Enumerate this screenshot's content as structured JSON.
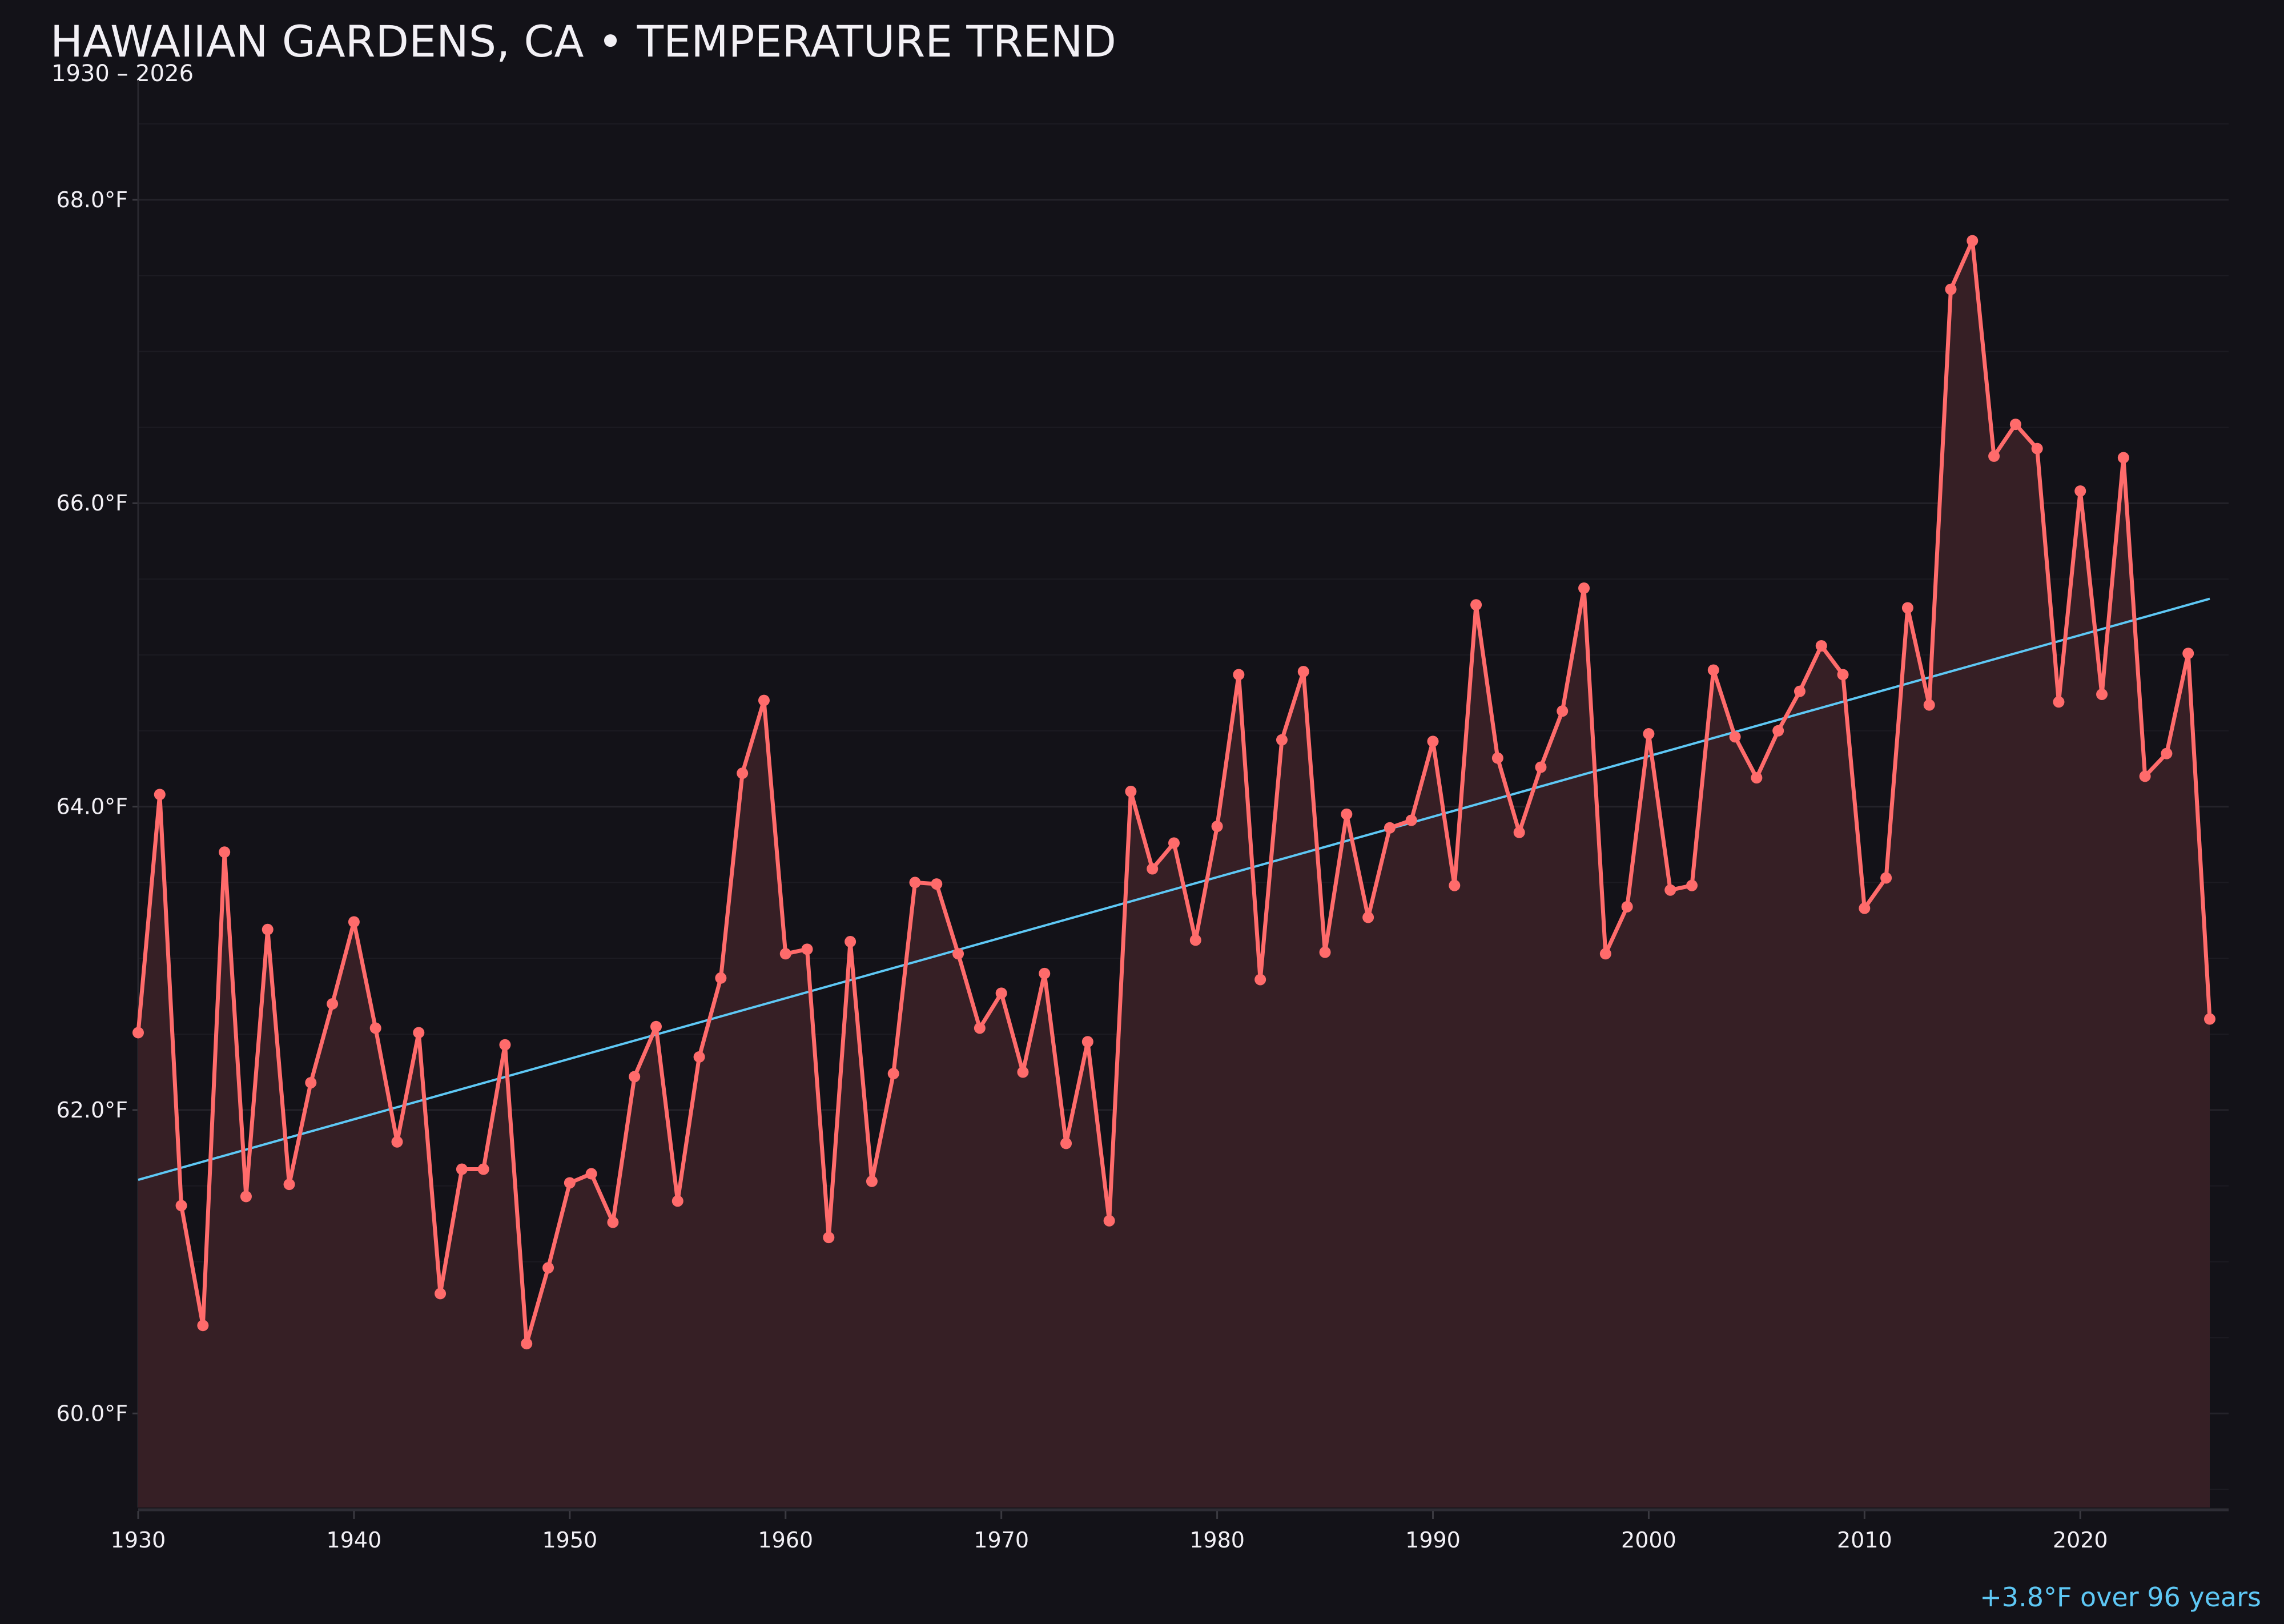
{
  "chart_data": {
    "type": "line",
    "title": "HAWAIIAN GARDENS, CA • TEMPERATURE TREND",
    "subtitle": "1930 – 2026",
    "annotation": "+3.8°F over 96 years",
    "xlabel": "",
    "ylabel": "",
    "xlim": [
      1930,
      2027
    ],
    "ylim": [
      59.38,
      68.79
    ],
    "x_ticks": [
      1930,
      1940,
      1950,
      1960,
      1970,
      1980,
      1990,
      2000,
      2010,
      2020
    ],
    "y_ticks": [
      60,
      62,
      64,
      66,
      68
    ],
    "y_tick_labels": [
      "60.0°F",
      "62.0°F",
      "64.0°F",
      "66.0°F",
      "68.0°F"
    ],
    "grid": true,
    "colors": {
      "series": "#ff6b6b",
      "fill": "#361f25",
      "trend": "#5ec8f5",
      "background": "#131218",
      "text": "#f2f0f5"
    },
    "x": [
      1930,
      1931,
      1932,
      1933,
      1934,
      1935,
      1936,
      1937,
      1938,
      1939,
      1940,
      1941,
      1942,
      1943,
      1944,
      1945,
      1946,
      1947,
      1948,
      1949,
      1950,
      1951,
      1952,
      1953,
      1954,
      1955,
      1956,
      1957,
      1958,
      1959,
      1960,
      1961,
      1962,
      1963,
      1964,
      1965,
      1966,
      1967,
      1968,
      1969,
      1970,
      1971,
      1972,
      1973,
      1974,
      1975,
      1976,
      1977,
      1978,
      1979,
      1980,
      1981,
      1982,
      1983,
      1984,
      1985,
      1986,
      1987,
      1988,
      1989,
      1990,
      1991,
      1992,
      1993,
      1994,
      1995,
      1996,
      1997,
      1998,
      1999,
      2000,
      2001,
      2002,
      2003,
      2004,
      2005,
      2006,
      2007,
      2008,
      2009,
      2010,
      2011,
      2012,
      2013,
      2014,
      2015,
      2016,
      2017,
      2018,
      2019,
      2020,
      2021,
      2022,
      2023,
      2024,
      2025,
      2026
    ],
    "series": [
      {
        "values": [
          62.51,
          64.08,
          61.37,
          60.58,
          63.7,
          61.43,
          63.19,
          61.51,
          62.18,
          62.7,
          63.24,
          62.54,
          61.79,
          62.51,
          60.79,
          61.61,
          61.61,
          62.43,
          60.46,
          60.96,
          61.52,
          61.58,
          61.26,
          62.22,
          62.55,
          61.4,
          62.35,
          62.87,
          64.22,
          64.7,
          63.03,
          63.06,
          61.16,
          63.11,
          61.53,
          62.24,
          63.5,
          63.49,
          63.03,
          62.54,
          62.77,
          62.25,
          62.9,
          61.78,
          62.45,
          61.27,
          64.1,
          63.59,
          63.76,
          63.12,
          63.87,
          64.87,
          62.86,
          64.44,
          64.89,
          63.04,
          63.95,
          63.27,
          63.86,
          63.91,
          64.43,
          63.48,
          65.33,
          64.32,
          63.83,
          64.26,
          64.63,
          65.44,
          63.03,
          63.34,
          64.48,
          63.45,
          63.48,
          64.9,
          64.46,
          64.19,
          64.5,
          64.76,
          65.06,
          64.87,
          63.33,
          63.53,
          65.31,
          64.67,
          67.41,
          67.73,
          66.31,
          66.52,
          66.36,
          64.69,
          66.08,
          64.74,
          66.3,
          64.2,
          64.35,
          65.01,
          62.6
        ]
      }
    ],
    "trend": {
      "x": [
        1930,
        2026
      ],
      "y": [
        61.54,
        65.37
      ]
    }
  }
}
